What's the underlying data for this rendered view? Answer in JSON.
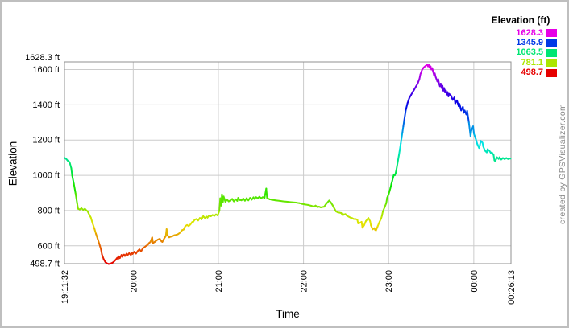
{
  "chart": {
    "y_axis": {
      "title": "Elevation",
      "tick_labels": [
        "1628.3 ft",
        "1600 ft",
        "1400 ft",
        "1200 ft",
        "1000 ft",
        "800 ft",
        "600 ft",
        "498.7 ft"
      ],
      "tick_values": [
        1628.3,
        1600,
        1400,
        1200,
        1000,
        800,
        600,
        498.7
      ]
    },
    "x_axis": {
      "title": "Time",
      "tick_labels": [
        "19:11:32",
        "20:00",
        "21:00",
        "22:00",
        "23:00",
        "00:00",
        "00:26:13"
      ],
      "tick_hours": [
        0,
        0.8078,
        1.8078,
        2.8078,
        3.8078,
        4.8078,
        5.2447
      ]
    },
    "legend": {
      "title": "Elevation (ft)",
      "items": [
        {
          "label": "1628.3",
          "color": "#e600e6"
        },
        {
          "label": "1345.9",
          "color": "#0039e6"
        },
        {
          "label": "1063.5",
          "color": "#00e673"
        },
        {
          "label": "781.1",
          "color": "#ace600"
        },
        {
          "label": "498.7",
          "color": "#e60000"
        }
      ]
    },
    "credit": "created by GPSVisualizer.com"
  },
  "colors": {
    "grid": "#cccccc",
    "plot_border": "#909090",
    "frame": "#bfbfbf",
    "text": "#000000",
    "credit_text": "#8a8a8a"
  },
  "chart_data": {
    "type": "line",
    "title": "",
    "xlabel": "Time",
    "ylabel": "Elevation",
    "x_unit": "hours_since_start",
    "start_time_label": "19:11:32",
    "end_time_label": "00:26:13",
    "duration_hours": 5.2447,
    "ylim": [
      498.7,
      1628.3
    ],
    "elevation_min_ft": 498.7,
    "elevation_max_ft": 1628.3,
    "color_mapping": "elevation mapped to rainbow hue: red at 498.7 ft through yellow-green, green, blue to magenta at 1628.3 ft",
    "legend_position": "top-right",
    "grid": true,
    "y_gridlines": [
      1600,
      1400,
      1200,
      1000,
      800,
      600
    ],
    "points": [
      [
        0.0,
        1100
      ],
      [
        0.02,
        1093
      ],
      [
        0.04,
        1082
      ],
      [
        0.06,
        1075
      ],
      [
        0.08,
        1040
      ],
      [
        0.09,
        1000
      ],
      [
        0.11,
        952
      ],
      [
        0.13,
        898
      ],
      [
        0.15,
        838
      ],
      [
        0.16,
        810
      ],
      [
        0.18,
        806
      ],
      [
        0.2,
        813
      ],
      [
        0.22,
        804
      ],
      [
        0.24,
        810
      ],
      [
        0.26,
        800
      ],
      [
        0.27,
        797
      ],
      [
        0.29,
        778
      ],
      [
        0.31,
        760
      ],
      [
        0.33,
        728
      ],
      [
        0.35,
        700
      ],
      [
        0.37,
        668
      ],
      [
        0.39,
        640
      ],
      [
        0.41,
        610
      ],
      [
        0.43,
        578
      ],
      [
        0.44,
        552
      ],
      [
        0.46,
        525
      ],
      [
        0.48,
        508
      ],
      [
        0.5,
        500
      ],
      [
        0.52,
        497
      ],
      [
        0.54,
        499
      ],
      [
        0.56,
        503
      ],
      [
        0.58,
        510
      ],
      [
        0.6,
        520
      ],
      [
        0.62,
        532
      ],
      [
        0.63,
        524
      ],
      [
        0.64,
        540
      ],
      [
        0.65,
        530
      ],
      [
        0.67,
        548
      ],
      [
        0.68,
        538
      ],
      [
        0.7,
        550
      ],
      [
        0.71,
        542
      ],
      [
        0.73,
        556
      ],
      [
        0.74,
        546
      ],
      [
        0.76,
        558
      ],
      [
        0.78,
        548
      ],
      [
        0.79,
        560
      ],
      [
        0.8,
        554
      ],
      [
        0.82,
        566
      ],
      [
        0.84,
        556
      ],
      [
        0.86,
        570
      ],
      [
        0.88,
        580
      ],
      [
        0.9,
        568
      ],
      [
        0.92,
        586
      ],
      [
        0.94,
        592
      ],
      [
        0.96,
        600
      ],
      [
        0.98,
        606
      ],
      [
        0.99,
        614
      ],
      [
        1.01,
        622
      ],
      [
        1.03,
        648
      ],
      [
        1.04,
        615
      ],
      [
        1.06,
        622
      ],
      [
        1.08,
        630
      ],
      [
        1.1,
        636
      ],
      [
        1.12,
        640
      ],
      [
        1.14,
        625
      ],
      [
        1.15,
        622
      ],
      [
        1.17,
        640
      ],
      [
        1.19,
        655
      ],
      [
        1.2,
        695
      ],
      [
        1.21,
        660
      ],
      [
        1.23,
        648
      ],
      [
        1.25,
        652
      ],
      [
        1.27,
        655
      ],
      [
        1.29,
        660
      ],
      [
        1.31,
        662
      ],
      [
        1.33,
        665
      ],
      [
        1.34,
        668
      ],
      [
        1.36,
        675
      ],
      [
        1.38,
        688
      ],
      [
        1.4,
        692
      ],
      [
        1.42,
        712
      ],
      [
        1.44,
        718
      ],
      [
        1.46,
        712
      ],
      [
        1.48,
        722
      ],
      [
        1.5,
        735
      ],
      [
        1.51,
        735
      ],
      [
        1.53,
        748
      ],
      [
        1.55,
        752
      ],
      [
        1.57,
        744
      ],
      [
        1.59,
        758
      ],
      [
        1.61,
        750
      ],
      [
        1.63,
        768
      ],
      [
        1.65,
        758
      ],
      [
        1.67,
        766
      ],
      [
        1.68,
        760
      ],
      [
        1.7,
        772
      ],
      [
        1.72,
        768
      ],
      [
        1.74,
        775
      ],
      [
        1.76,
        770
      ],
      [
        1.78,
        778
      ],
      [
        1.8,
        772
      ],
      [
        1.82,
        800
      ],
      [
        1.83,
        870
      ],
      [
        1.84,
        828
      ],
      [
        1.85,
        892
      ],
      [
        1.86,
        845
      ],
      [
        1.87,
        880
      ],
      [
        1.89,
        850
      ],
      [
        1.91,
        862
      ],
      [
        1.93,
        852
      ],
      [
        1.95,
        858
      ],
      [
        1.97,
        866
      ],
      [
        1.99,
        852
      ],
      [
        2.01,
        864
      ],
      [
        2.03,
        855
      ],
      [
        2.04,
        872
      ],
      [
        2.06,
        860
      ],
      [
        2.08,
        858
      ],
      [
        2.1,
        868
      ],
      [
        2.12,
        856
      ],
      [
        2.14,
        870
      ],
      [
        2.16,
        858
      ],
      [
        2.18,
        872
      ],
      [
        2.2,
        862
      ],
      [
        2.22,
        875
      ],
      [
        2.23,
        866
      ],
      [
        2.25,
        876
      ],
      [
        2.27,
        870
      ],
      [
        2.29,
        878
      ],
      [
        2.31,
        870
      ],
      [
        2.33,
        876
      ],
      [
        2.35,
        872
      ],
      [
        2.37,
        925
      ],
      [
        2.38,
        872
      ],
      [
        2.39,
        868
      ],
      [
        2.41,
        864
      ],
      [
        2.43,
        862
      ],
      [
        2.48,
        858
      ],
      [
        2.53,
        855
      ],
      [
        2.57,
        852
      ],
      [
        2.62,
        850
      ],
      [
        2.67,
        847
      ],
      [
        2.72,
        845
      ],
      [
        2.76,
        842
      ],
      [
        2.79,
        838
      ],
      [
        2.82,
        835
      ],
      [
        2.86,
        832
      ],
      [
        2.9,
        827
      ],
      [
        2.93,
        822
      ],
      [
        2.95,
        828
      ],
      [
        2.97,
        820
      ],
      [
        2.99,
        822
      ],
      [
        3.01,
        818
      ],
      [
        3.03,
        820
      ],
      [
        3.05,
        822
      ],
      [
        3.07,
        835
      ],
      [
        3.1,
        852
      ],
      [
        3.11,
        857
      ],
      [
        3.13,
        845
      ],
      [
        3.15,
        830
      ],
      [
        3.17,
        812
      ],
      [
        3.19,
        795
      ],
      [
        3.21,
        790
      ],
      [
        3.23,
        788
      ],
      [
        3.25,
        786
      ],
      [
        3.27,
        773
      ],
      [
        3.28,
        778
      ],
      [
        3.3,
        780
      ],
      [
        3.32,
        770
      ],
      [
        3.34,
        765
      ],
      [
        3.36,
        760
      ],
      [
        3.38,
        757
      ],
      [
        3.4,
        752
      ],
      [
        3.42,
        752
      ],
      [
        3.44,
        748
      ],
      [
        3.45,
        727
      ],
      [
        3.47,
        730
      ],
      [
        3.49,
        736
      ],
      [
        3.5,
        703
      ],
      [
        3.52,
        717
      ],
      [
        3.54,
        740
      ],
      [
        3.56,
        752
      ],
      [
        3.57,
        758
      ],
      [
        3.59,
        740
      ],
      [
        3.6,
        716
      ],
      [
        3.62,
        694
      ],
      [
        3.64,
        700
      ],
      [
        3.65,
        690
      ],
      [
        3.66,
        688
      ],
      [
        3.68,
        712
      ],
      [
        3.7,
        735
      ],
      [
        3.72,
        755
      ],
      [
        3.73,
        772
      ],
      [
        3.74,
        795
      ],
      [
        3.76,
        818
      ],
      [
        3.78,
        842
      ],
      [
        3.79,
        872
      ],
      [
        3.81,
        896
      ],
      [
        3.82,
        912
      ],
      [
        3.83,
        930
      ],
      [
        3.84,
        950
      ],
      [
        3.85,
        968
      ],
      [
        3.86,
        988
      ],
      [
        3.87,
        1005
      ],
      [
        3.88,
        1000
      ],
      [
        3.89,
        1012
      ],
      [
        3.9,
        1035
      ],
      [
        3.91,
        1062
      ],
      [
        3.92,
        1090
      ],
      [
        3.93,
        1118
      ],
      [
        3.94,
        1148
      ],
      [
        3.95,
        1180
      ],
      [
        3.96,
        1212
      ],
      [
        3.97,
        1245
      ],
      [
        3.98,
        1278
      ],
      [
        3.99,
        1310
      ],
      [
        4.01,
        1372
      ],
      [
        4.03,
        1410
      ],
      [
        4.05,
        1438
      ],
      [
        4.07,
        1455
      ],
      [
        4.09,
        1472
      ],
      [
        4.11,
        1488
      ],
      [
        4.13,
        1505
      ],
      [
        4.15,
        1522
      ],
      [
        4.17,
        1548
      ],
      [
        4.18,
        1572
      ],
      [
        4.2,
        1598
      ],
      [
        4.22,
        1612
      ],
      [
        4.24,
        1620
      ],
      [
        4.26,
        1628
      ],
      [
        4.27,
        1618
      ],
      [
        4.28,
        1626
      ],
      [
        4.29,
        1610
      ],
      [
        4.3,
        1618
      ],
      [
        4.31,
        1600
      ],
      [
        4.32,
        1608
      ],
      [
        4.33,
        1588
      ],
      [
        4.34,
        1570
      ],
      [
        4.35,
        1578
      ],
      [
        4.36,
        1558
      ],
      [
        4.37,
        1545
      ],
      [
        4.38,
        1532
      ],
      [
        4.39,
        1545
      ],
      [
        4.4,
        1520
      ],
      [
        4.41,
        1505
      ],
      [
        4.42,
        1520
      ],
      [
        4.43,
        1495
      ],
      [
        4.44,
        1508
      ],
      [
        4.45,
        1480
      ],
      [
        4.46,
        1495
      ],
      [
        4.47,
        1470
      ],
      [
        4.48,
        1482
      ],
      [
        4.49,
        1458
      ],
      [
        4.5,
        1472
      ],
      [
        4.51,
        1448
      ],
      [
        4.52,
        1462
      ],
      [
        4.54,
        1452
      ],
      [
        4.55,
        1440
      ],
      [
        4.56,
        1428
      ],
      [
        4.58,
        1442
      ],
      [
        4.59,
        1408
      ],
      [
        4.61,
        1425
      ],
      [
        4.63,
        1392
      ],
      [
        4.64,
        1405
      ],
      [
        4.66,
        1368
      ],
      [
        4.68,
        1388
      ],
      [
        4.69,
        1355
      ],
      [
        4.7,
        1368
      ],
      [
        4.72,
        1345
      ],
      [
        4.73,
        1365
      ],
      [
        4.75,
        1300
      ],
      [
        4.77,
        1222
      ],
      [
        4.78,
        1255
      ],
      [
        4.8,
        1278
      ],
      [
        4.81,
        1235
      ],
      [
        4.83,
        1208
      ],
      [
        4.85,
        1176
      ],
      [
        4.87,
        1155
      ],
      [
        4.88,
        1172
      ],
      [
        4.89,
        1195
      ],
      [
        4.91,
        1185
      ],
      [
        4.92,
        1162
      ],
      [
        4.94,
        1140
      ],
      [
        4.96,
        1130
      ],
      [
        4.97,
        1148
      ],
      [
        4.99,
        1140
      ],
      [
        5.01,
        1125
      ],
      [
        5.02,
        1130
      ],
      [
        5.04,
        1116
      ],
      [
        5.05,
        1085
      ],
      [
        5.06,
        1080
      ],
      [
        5.08,
        1102
      ],
      [
        5.1,
        1093
      ],
      [
        5.11,
        1102
      ],
      [
        5.13,
        1090
      ],
      [
        5.15,
        1098
      ],
      [
        5.17,
        1092
      ],
      [
        5.19,
        1098
      ],
      [
        5.21,
        1093
      ],
      [
        5.22,
        1095
      ],
      [
        5.24,
        1095
      ]
    ]
  }
}
